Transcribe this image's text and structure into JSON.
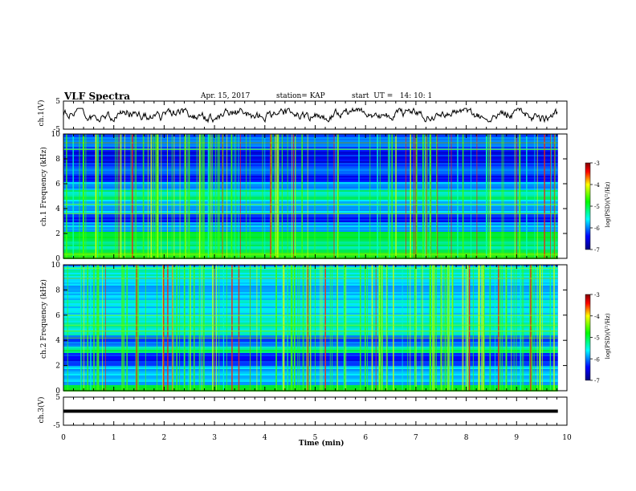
{
  "header": {
    "title": "VLF Spectra",
    "date": "Apr. 15, 2017",
    "station": "station= KAP",
    "start": "start  UT =   14: 10: 1"
  },
  "chart_data": {
    "type": "heatmap",
    "xlabel": "Time (min)",
    "xlim": [
      0,
      10
    ],
    "xticks": [
      "0",
      "1",
      "2",
      "3",
      "4",
      "5",
      "6",
      "7",
      "8",
      "9",
      "10"
    ],
    "panels": [
      {
        "id": "ch1-waveform",
        "type": "line",
        "ylabel": "ch.1(V)",
        "ylim": [
          -5,
          5
        ],
        "yticks": [
          "5",
          "-5"
        ],
        "description_values": {
          "mean": 0,
          "amplitude": 1.5
        }
      },
      {
        "id": "ch1-spectrogram",
        "type": "heatmap",
        "ylabel": "ch.1 Frequency (kHz)",
        "ylim": [
          0,
          10
        ],
        "yticks": [
          "0",
          "2",
          "4",
          "6",
          "8",
          "10"
        ],
        "colorbar": {
          "label": "log(PSD)(V²/Hz)",
          "range": [
            -7,
            -3
          ],
          "ticks": [
            "-3",
            "-4",
            "-5",
            "-6",
            "-7"
          ]
        }
      },
      {
        "id": "ch2-spectrogram",
        "type": "heatmap",
        "ylabel": "ch.2 Frequency (kHz)",
        "ylim": [
          0,
          10
        ],
        "yticks": [
          "0",
          "2",
          "4",
          "6",
          "8",
          "10"
        ],
        "colorbar": {
          "label": "log(PSD)(V²/Hz)",
          "range": [
            -7,
            -3
          ],
          "ticks": [
            "-3",
            "-4",
            "-5",
            "-6",
            "-7"
          ]
        }
      },
      {
        "id": "ch3-waveform",
        "type": "line",
        "ylabel": "ch.3(V)",
        "ylim": [
          -5,
          5
        ],
        "yticks": [
          "5",
          "-5"
        ],
        "description_values": {
          "mean": 0,
          "amplitude": 0
        }
      }
    ],
    "data_end_min": 9.82
  }
}
